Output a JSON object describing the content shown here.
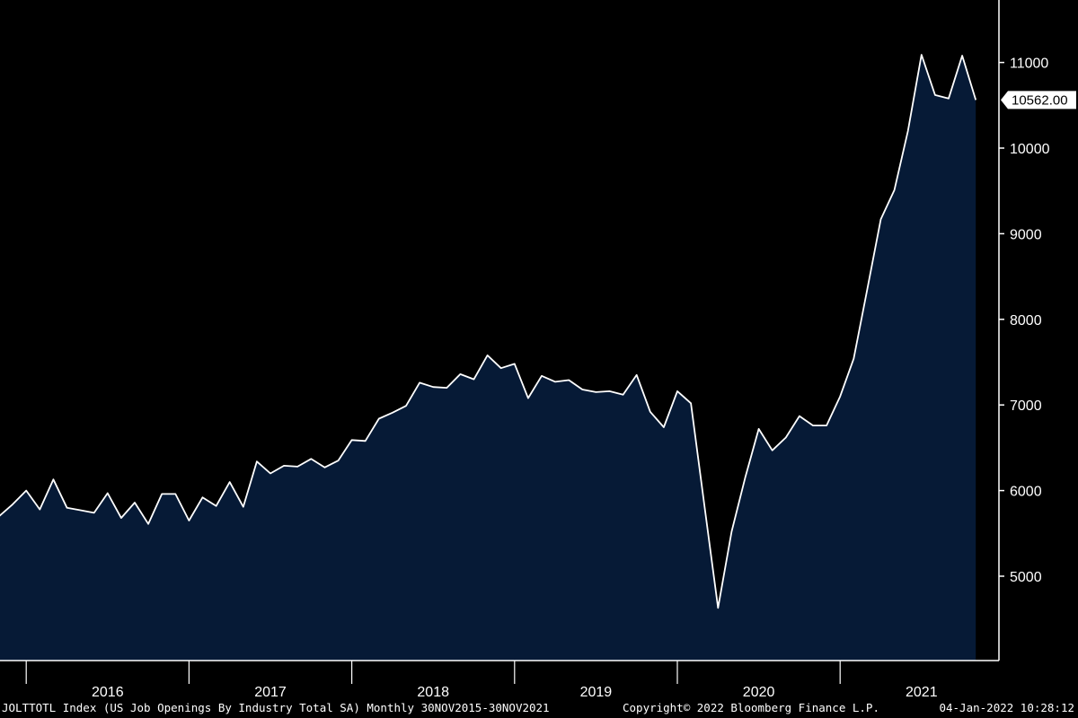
{
  "chart_data": {
    "type": "area",
    "title": "",
    "xlabel": "",
    "ylabel": "",
    "ylim": [
      4000,
      11500
    ],
    "yticks": [
      5000,
      6000,
      7000,
      8000,
      9000,
      10000,
      11000
    ],
    "year_labels": [
      "2016",
      "2017",
      "2018",
      "2019",
      "2020",
      "2021"
    ],
    "grid": false,
    "fill_color": "#061a36",
    "line_color": "#ffffff",
    "last_value_label": "10562.00",
    "x": [
      "2015-11",
      "2015-12",
      "2016-01",
      "2016-02",
      "2016-03",
      "2016-04",
      "2016-05",
      "2016-06",
      "2016-07",
      "2016-08",
      "2016-09",
      "2016-10",
      "2016-11",
      "2016-12",
      "2017-01",
      "2017-02",
      "2017-03",
      "2017-04",
      "2017-05",
      "2017-06",
      "2017-07",
      "2017-08",
      "2017-09",
      "2017-10",
      "2017-11",
      "2017-12",
      "2018-01",
      "2018-02",
      "2018-03",
      "2018-04",
      "2018-05",
      "2018-06",
      "2018-07",
      "2018-08",
      "2018-09",
      "2018-10",
      "2018-11",
      "2018-12",
      "2019-01",
      "2019-02",
      "2019-03",
      "2019-04",
      "2019-05",
      "2019-06",
      "2019-07",
      "2019-08",
      "2019-09",
      "2019-10",
      "2019-11",
      "2019-12",
      "2020-01",
      "2020-02",
      "2020-03",
      "2020-04",
      "2020-05",
      "2020-06",
      "2020-07",
      "2020-08",
      "2020-09",
      "2020-10",
      "2020-11",
      "2020-12",
      "2021-01",
      "2021-02",
      "2021-03",
      "2021-04",
      "2021-05",
      "2021-06",
      "2021-07",
      "2021-08",
      "2021-09",
      "2021-10",
      "2021-11"
    ],
    "values": [
      5700,
      5840,
      6000,
      5780,
      6130,
      5800,
      5770,
      5740,
      5970,
      5680,
      5860,
      5610,
      5960,
      5960,
      5650,
      5920,
      5820,
      6100,
      5810,
      6340,
      6200,
      6290,
      6280,
      6370,
      6270,
      6350,
      6590,
      6580,
      6840,
      6910,
      6990,
      7260,
      7210,
      7200,
      7360,
      7300,
      7580,
      7430,
      7480,
      7080,
      7340,
      7270,
      7290,
      7180,
      7150,
      7160,
      7120,
      7350,
      6920,
      6740,
      7160,
      7020,
      5820,
      4630,
      5520,
      6150,
      6720,
      6470,
      6620,
      6870,
      6760,
      6760,
      7100,
      7540,
      8350,
      9170,
      9510,
      10200,
      11090,
      10620,
      10580,
      11080,
      10562
    ]
  },
  "footer": {
    "ticker": "JOLTTOTL Index (US Job Openings By Industry Total SA) Monthly 30NOV2015-30NOV2021",
    "copyright": "Copyright© 2022 Bloomberg Finance L.P.",
    "timestamp": "04-Jan-2022 10:28:12"
  }
}
